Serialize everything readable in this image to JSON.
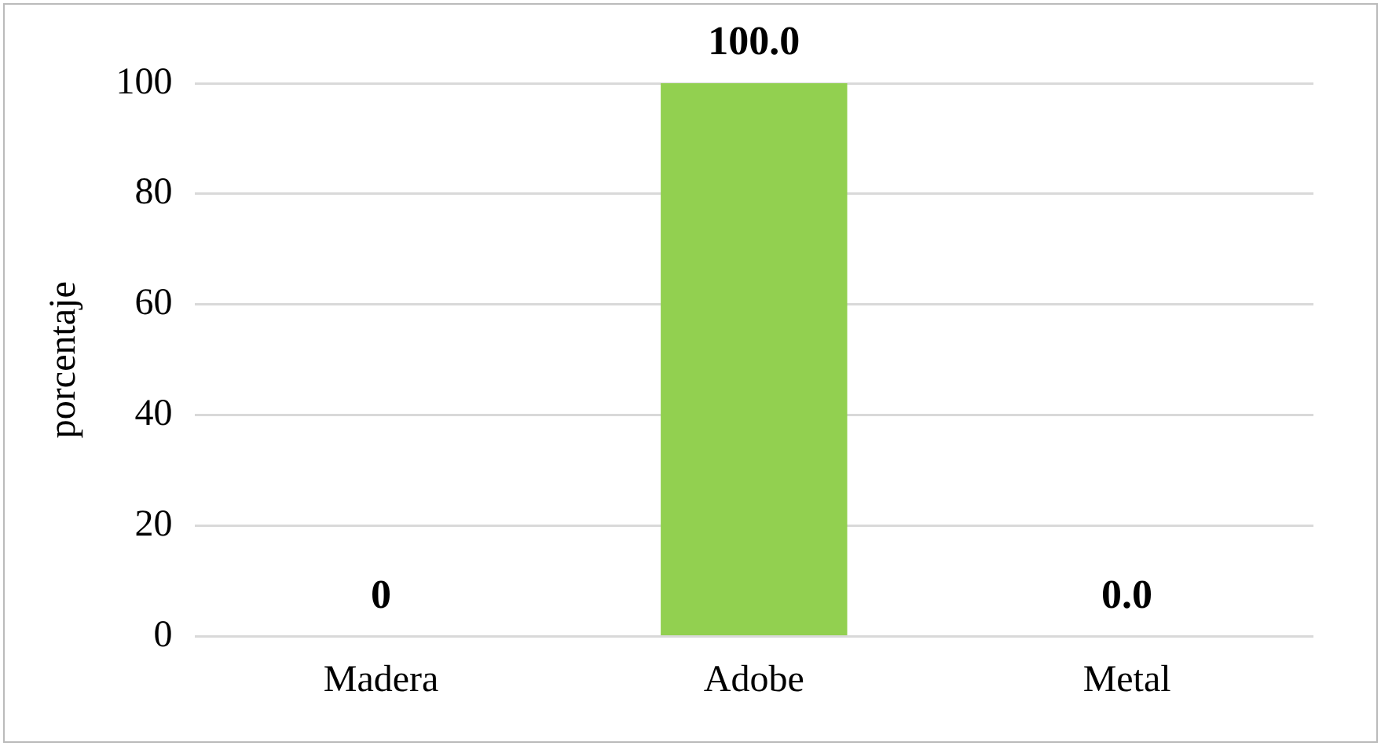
{
  "chart_data": {
    "type": "bar",
    "ylabel": "porcentaje",
    "categories": [
      "Madera",
      "Adobe",
      "Metal"
    ],
    "values": [
      0,
      100,
      0
    ],
    "colors": [
      "#c89a00",
      "#92d050",
      "#1b8fc2"
    ],
    "value_labels": [
      "0",
      "100.0",
      "0.0"
    ],
    "ylim": [
      0,
      100
    ],
    "yticks": [
      0,
      20,
      40,
      60,
      80,
      100
    ],
    "grid": "y",
    "legend": false
  }
}
